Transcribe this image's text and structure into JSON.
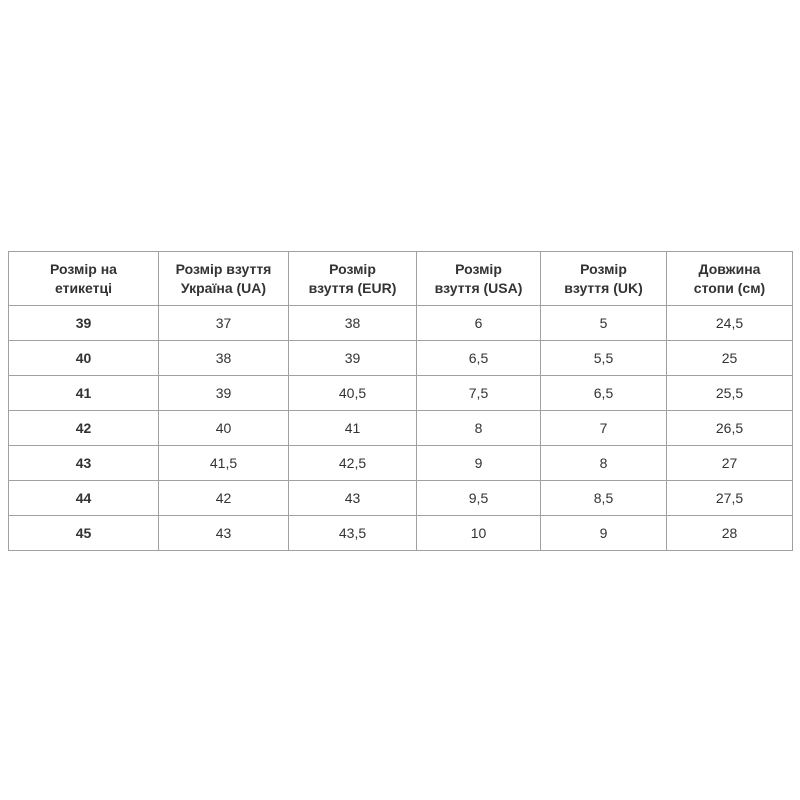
{
  "table": {
    "headers": [
      [
        "Розмір на",
        "етикетці"
      ],
      [
        "Розмір взуття",
        "Україна (UA)"
      ],
      [
        "Розмір",
        "взуття (EUR)"
      ],
      [
        "Розмір",
        "взуття (USA)"
      ],
      [
        "Розмір",
        "взуття (UK)"
      ],
      [
        "Довжина",
        "стопи (см)"
      ]
    ],
    "rows": [
      [
        "39",
        "37",
        "38",
        "6",
        "5",
        "24,5"
      ],
      [
        "40",
        "38",
        "39",
        "6,5",
        "5,5",
        "25"
      ],
      [
        "41",
        "39",
        "40,5",
        "7,5",
        "6,5",
        "25,5"
      ],
      [
        "42",
        "40",
        "41",
        "8",
        "7",
        "26,5"
      ],
      [
        "43",
        "41,5",
        "42,5",
        "9",
        "8",
        "27"
      ],
      [
        "44",
        "42",
        "43",
        "9,5",
        "8,5",
        "27,5"
      ],
      [
        "45",
        "43",
        "43,5",
        "10",
        "9",
        "28"
      ]
    ]
  }
}
